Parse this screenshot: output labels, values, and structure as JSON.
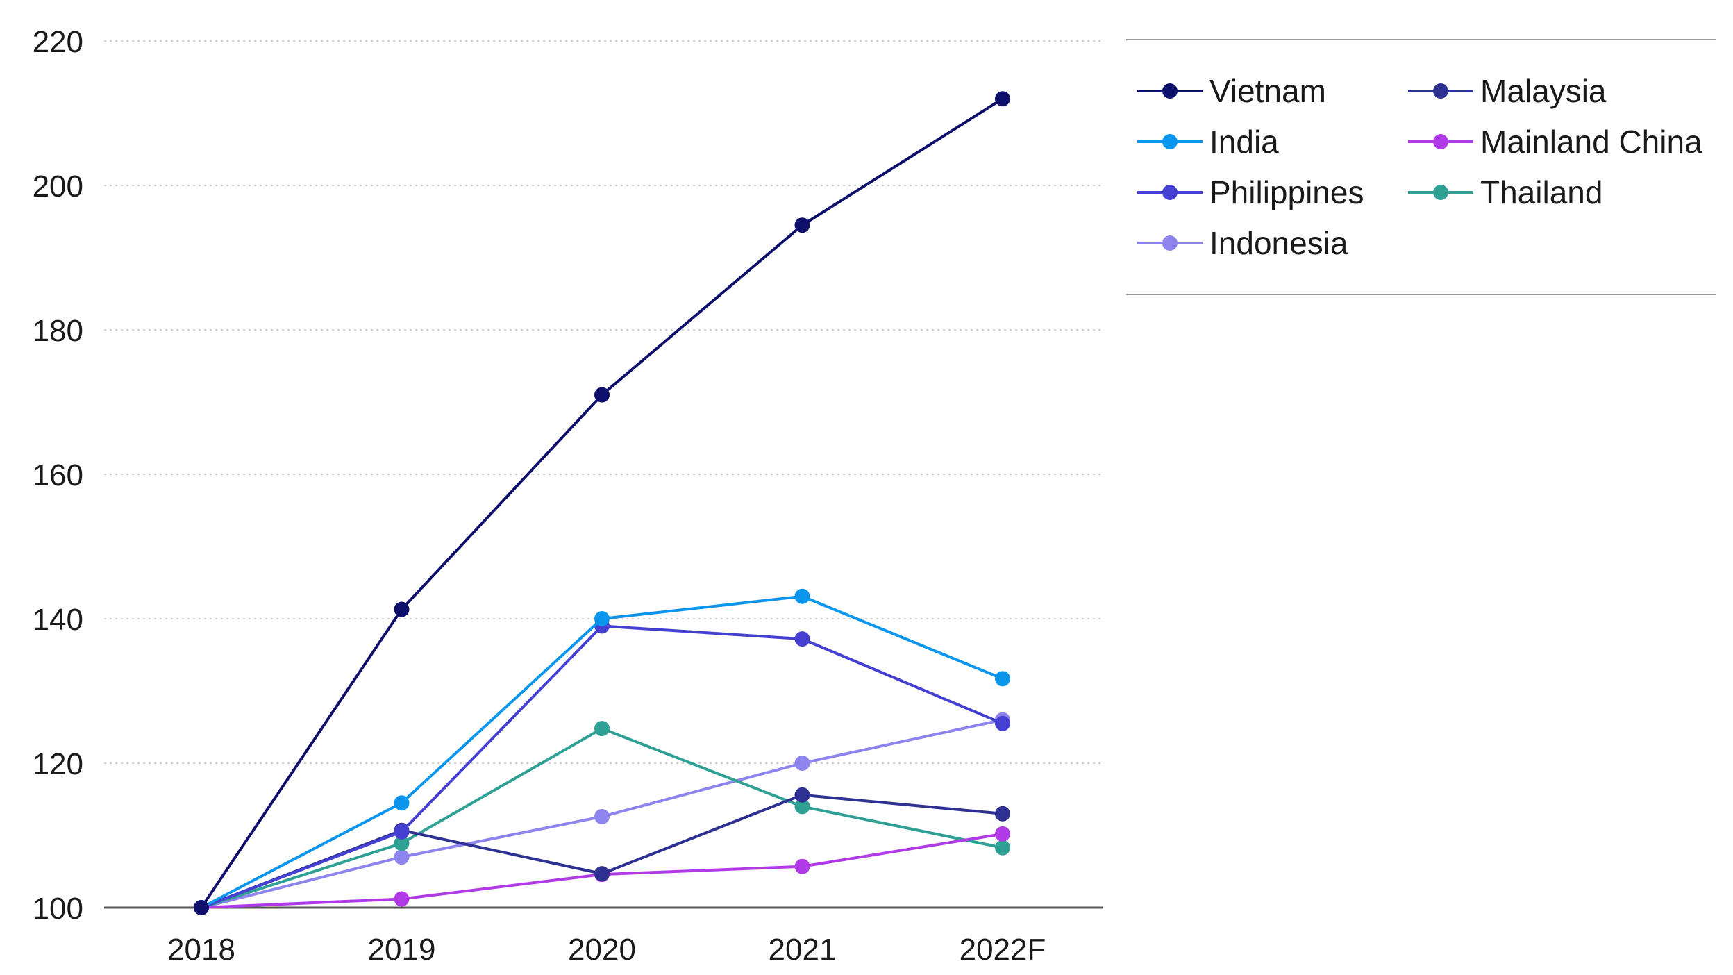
{
  "chart_data": {
    "type": "line",
    "title": "",
    "xlabel": "",
    "ylabel": "",
    "categories": [
      "2018",
      "2019",
      "2020",
      "2021",
      "2022F"
    ],
    "ylim": [
      100,
      220
    ],
    "yticks": [
      100,
      120,
      140,
      160,
      180,
      200,
      220
    ],
    "grid": "horizontal dotted",
    "legend_position": "right",
    "series": [
      {
        "name": "Vietnam",
        "color": "#0d0f6b",
        "values": [
          100,
          141.3,
          171.0,
          194.5,
          212.0
        ]
      },
      {
        "name": "Malaysia",
        "color": "#2e3192",
        "values": [
          100,
          110.7,
          104.7,
          115.6,
          113.0
        ]
      },
      {
        "name": "India",
        "color": "#0b96ee",
        "values": [
          100,
          114.5,
          140.0,
          143.1,
          131.7
        ]
      },
      {
        "name": "Mainland China",
        "color": "#b03ae6",
        "values": [
          100,
          101.2,
          104.6,
          105.7,
          110.2
        ]
      },
      {
        "name": "Philippines",
        "color": "#4540d1",
        "values": [
          100,
          110.5,
          139.0,
          137.2,
          125.5
        ]
      },
      {
        "name": "Thailand",
        "color": "#2ea094",
        "values": [
          100,
          108.9,
          124.8,
          114.0,
          108.3
        ]
      },
      {
        "name": "Indonesia",
        "color": "#8d84ee",
        "values": [
          100,
          107.0,
          112.6,
          120.0,
          126.0
        ]
      }
    ]
  }
}
